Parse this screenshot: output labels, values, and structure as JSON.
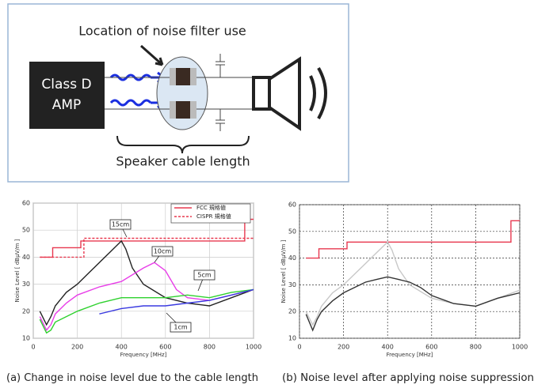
{
  "diagram": {
    "filter_label": "Location of noise filter use",
    "amp_label": [
      "Class D",
      "AMP"
    ],
    "cable_label": "Speaker cable length"
  },
  "chart_data": [
    {
      "type": "line",
      "caption": "(a) Change in noise level due to the cable length",
      "xlabel": "Frequency [MHz]",
      "ylabel": "Noise Level [ dBμV/m ]",
      "xlim": [
        0,
        1000
      ],
      "xticks": [
        0,
        200,
        400,
        600,
        800,
        1000
      ],
      "ylim": [
        10,
        60
      ],
      "yticks": [
        10,
        20,
        30,
        40,
        50,
        60
      ],
      "grid": true,
      "grid_style": "solid",
      "legend": "top-right",
      "series": [
        {
          "name": "FCC 規格値",
          "color": "#e8384f",
          "dashed": false,
          "in_legend": true,
          "x": [
            30,
            88,
            88,
            216,
            216,
            960,
            960,
            1000
          ],
          "values": [
            40,
            40,
            43.5,
            43.5,
            46,
            46,
            54,
            54
          ]
        },
        {
          "name": "CISPR 規格値",
          "color": "#e8384f",
          "dashed": true,
          "in_legend": true,
          "x": [
            30,
            230,
            230,
            1000
          ],
          "values": [
            40,
            40,
            47,
            47
          ]
        },
        {
          "name": "15cm",
          "color": "#222222",
          "dashed": false,
          "in_legend": false,
          "x": [
            30,
            60,
            80,
            100,
            150,
            200,
            250,
            300,
            350,
            400,
            420,
            450,
            500,
            600,
            700,
            800,
            900,
            1000
          ],
          "values": [
            20,
            15,
            18,
            22,
            27,
            30,
            34,
            38,
            42,
            46,
            43,
            36,
            30,
            25,
            23,
            22,
            25,
            28
          ]
        },
        {
          "name": "10cm",
          "color": "#e83ee8",
          "dashed": false,
          "in_legend": false,
          "x": [
            30,
            60,
            80,
            100,
            150,
            200,
            300,
            400,
            500,
            550,
            600,
            650,
            700,
            800,
            900,
            1000
          ],
          "values": [
            18,
            13,
            15,
            19,
            23,
            26,
            29,
            31,
            36,
            38,
            35,
            28,
            25,
            24,
            26,
            28
          ]
        },
        {
          "name": "5cm",
          "color": "#2ed12e",
          "dashed": false,
          "in_legend": false,
          "x": [
            30,
            60,
            80,
            100,
            200,
            300,
            400,
            500,
            600,
            700,
            800,
            900,
            1000
          ],
          "values": [
            17,
            12,
            13,
            16,
            20,
            23,
            25,
            25,
            25,
            26,
            25,
            27,
            28
          ]
        },
        {
          "name": "1cm",
          "color": "#3a3ae0",
          "dashed": false,
          "in_legend": false,
          "x": [
            300,
            400,
            500,
            600,
            700,
            800,
            900,
            1000
          ],
          "values": [
            19,
            21,
            22,
            22,
            23,
            24,
            26,
            28
          ]
        }
      ]
    },
    {
      "type": "line",
      "caption": "(b) Noise level after applying noise suppression",
      "xlabel": "Frequency [MHz]",
      "ylabel": "Noise Level [ dBμV/m ]",
      "xlim": [
        0,
        1000
      ],
      "xticks": [
        0,
        200,
        400,
        600,
        800,
        1000
      ],
      "ylim": [
        10,
        60
      ],
      "yticks": [
        10,
        20,
        30,
        40,
        50,
        60
      ],
      "grid": true,
      "grid_style": "dashed",
      "series": [
        {
          "color": "#e8384f",
          "dashed": false,
          "x": [
            30,
            88,
            88,
            216,
            216,
            960,
            960,
            1000
          ],
          "values": [
            40,
            40,
            43.5,
            43.5,
            46,
            46,
            54,
            54
          ]
        },
        {
          "color": "#c8c8c8",
          "dashed": false,
          "x": [
            30,
            60,
            80,
            100,
            150,
            200,
            250,
            300,
            350,
            400,
            420,
            450,
            500,
            600,
            700,
            800,
            900,
            1000
          ],
          "values": [
            20,
            15,
            18,
            22,
            27,
            30,
            34,
            38,
            42,
            46,
            43,
            36,
            30,
            25,
            23,
            22,
            25,
            28
          ]
        },
        {
          "color": "#333333",
          "dashed": false,
          "x": [
            30,
            60,
            80,
            100,
            150,
            200,
            250,
            300,
            350,
            400,
            450,
            500,
            550,
            600,
            700,
            800,
            900,
            1000
          ],
          "values": [
            19,
            13,
            17,
            20,
            24,
            27,
            29,
            31,
            32,
            33,
            32,
            31,
            29,
            26,
            23,
            22,
            25,
            27
          ]
        }
      ]
    }
  ]
}
